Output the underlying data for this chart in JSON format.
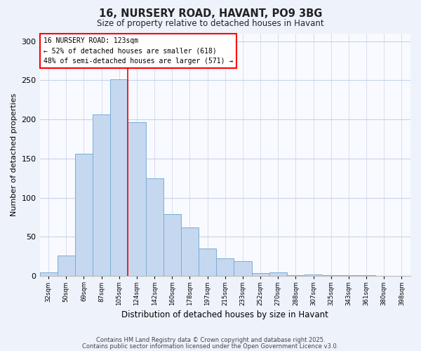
{
  "title": "16, NURSERY ROAD, HAVANT, PO9 3BG",
  "subtitle": "Size of property relative to detached houses in Havant",
  "xlabel": "Distribution of detached houses by size in Havant",
  "ylabel": "Number of detached properties",
  "bar_color": "#c5d8f0",
  "bar_edge_color": "#7aadd4",
  "marker_label": "16 NURSERY ROAD: 123sqm",
  "annotation_line2": "← 52% of detached houses are smaller (618)",
  "annotation_line3": "48% of semi-detached houses are larger (571) →",
  "categories": [
    "32sqm",
    "50sqm",
    "69sqm",
    "87sqm",
    "105sqm",
    "124sqm",
    "142sqm",
    "160sqm",
    "178sqm",
    "197sqm",
    "215sqm",
    "233sqm",
    "252sqm",
    "270sqm",
    "288sqm",
    "307sqm",
    "325sqm",
    "343sqm",
    "361sqm",
    "380sqm",
    "398sqm"
  ],
  "values": [
    5,
    26,
    156,
    206,
    251,
    197,
    125,
    79,
    62,
    35,
    23,
    19,
    4,
    5,
    1,
    2,
    1,
    1,
    1,
    0,
    0
  ],
  "marker_bar_index": 5,
  "ylim": [
    0,
    310
  ],
  "yticks": [
    0,
    50,
    100,
    150,
    200,
    250,
    300
  ],
  "footnote1": "Contains HM Land Registry data © Crown copyright and database right 2025.",
  "footnote2": "Contains public sector information licensed under the Open Government Licence v3.0.",
  "background_color": "#eef2fb",
  "plot_background": "#f8faff",
  "grid_color": "#c8d4e8"
}
